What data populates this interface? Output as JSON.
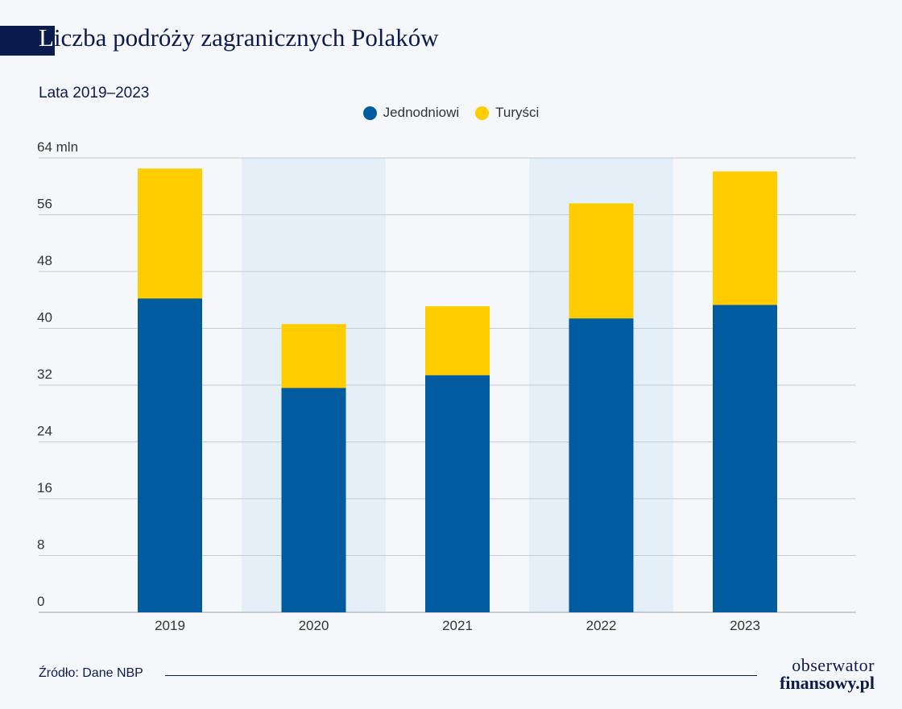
{
  "header": {
    "title_first": "L",
    "title_rest": "iczba podróży zagranicznych Polaków",
    "subtitle": "Lata 2019–2023"
  },
  "legend": [
    {
      "label": "Jednodniowi",
      "color": "#005b9f"
    },
    {
      "label": "Turyści",
      "color": "#ffcc00"
    }
  ],
  "chart_data": {
    "type": "bar",
    "stacked": true,
    "categories": [
      "2019",
      "2020",
      "2021",
      "2022",
      "2023"
    ],
    "series": [
      {
        "name": "Jednodniowi",
        "color": "#005b9f",
        "values": [
          44.2,
          31.6,
          33.4,
          41.4,
          43.3
        ]
      },
      {
        "name": "Turyści",
        "color": "#ffcc00",
        "values": [
          18.3,
          9.0,
          9.7,
          16.2,
          18.8
        ]
      }
    ],
    "ylim": [
      0,
      64
    ],
    "yticks": [
      "0",
      "8",
      "16",
      "24",
      "32",
      "40",
      "48",
      "56",
      "64 mln"
    ],
    "grid": true,
    "highlighted_categories": [
      "2020",
      "2022"
    ],
    "highlight_color": "#e4eff8"
  },
  "footer": {
    "source": "Źródło: Dane NBP",
    "logo_line1": "obserwator",
    "logo_line2": "finansowy.pl"
  }
}
